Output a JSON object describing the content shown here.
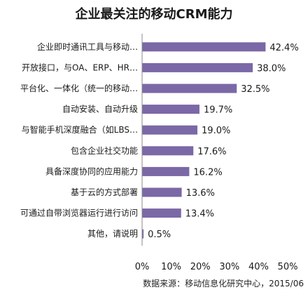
{
  "chart_data": {
    "type": "bar",
    "orientation": "horizontal",
    "title": "企业最关注的移动CRM能力",
    "categories": [
      "企业即时通讯工具与移动…",
      "开放接口，与OA、ERP、HR…",
      "平台化、一体化（统一的移动…",
      "自动安装、自动升级",
      "与智能手机深度融合（如LBS…",
      "包含企业社交功能",
      "具备深度协同的应用能力",
      "基于云的方式部署",
      "可通过自带浏览器运行进行访问",
      "其他，请说明"
    ],
    "values": [
      42.4,
      38.0,
      32.5,
      19.7,
      19.0,
      17.6,
      16.2,
      13.6,
      13.4,
      0.5
    ],
    "value_labels": [
      "42.4%",
      "38.0%",
      "32.5%",
      "19.7%",
      "19.0%",
      "17.6%",
      "16.2%",
      "13.6%",
      "13.4%",
      "0.5%"
    ],
    "xlim": [
      0,
      50
    ],
    "ticks": [
      "0%",
      "10%",
      "20%",
      "30%",
      "40%",
      "50%"
    ],
    "tick_values": [
      0,
      10,
      20,
      30,
      40,
      50
    ],
    "grid": false,
    "bar_color": "#7b68a6",
    "source": "数据来源：移动信息化研究中心，2015/06"
  }
}
